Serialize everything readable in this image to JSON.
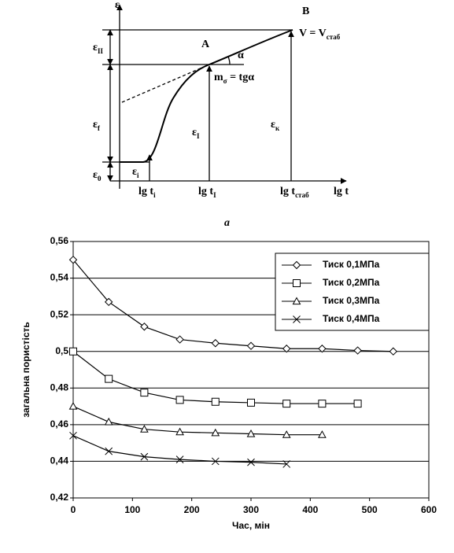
{
  "diagram": {
    "labels": [
      {
        "text": "ε"
      },
      {
        "text": "B"
      },
      {
        "text": "A"
      },
      {
        "text": "V = V",
        "sub": "стаб"
      },
      {
        "text": "α"
      },
      {
        "text": "ε",
        "sub": "II"
      },
      {
        "text": "m",
        "sub": "σ",
        "after": " = tgα"
      },
      {
        "text": "ε",
        "sub": "f"
      },
      {
        "text": "ε",
        "sub": "I"
      },
      {
        "text": "ε",
        "sub": "к"
      },
      {
        "text": "ε",
        "sub": "i"
      },
      {
        "text": "ε",
        "sub": "0"
      },
      {
        "text": "lg t",
        "sub": "i"
      },
      {
        "text": "lg t",
        "sub": "I"
      },
      {
        "text": "lg t",
        "sub": "стаб"
      },
      {
        "text": "lg t"
      }
    ],
    "caption": "a"
  },
  "chart_data": {
    "type": "line",
    "x_label": "Час, мін",
    "y_label": "загальна пористість",
    "xlim": [
      0,
      600
    ],
    "xticks": [
      0,
      100,
      200,
      300,
      400,
      500,
      600
    ],
    "ylim": [
      0.42,
      0.56
    ],
    "yticks": [
      {
        "value": 0.42,
        "label": "0,42"
      },
      {
        "value": 0.44,
        "label": "0,44"
      },
      {
        "value": 0.46,
        "label": "0,46"
      },
      {
        "value": 0.48,
        "label": "0,48"
      },
      {
        "value": 0.5,
        "label": "0,5"
      },
      {
        "value": 0.52,
        "label": "0,52"
      },
      {
        "value": 0.54,
        "label": "0,54"
      },
      {
        "value": 0.56,
        "label": "0,56"
      }
    ],
    "grid": true,
    "legend": "upper right",
    "series": [
      {
        "name": "Тиск 0,1МПа",
        "color": "#000000",
        "marker": "diamond",
        "x": [
          0,
          60,
          120,
          180,
          240,
          300,
          360,
          420,
          480,
          540
        ],
        "values": [
          0.55,
          0.527,
          0.5135,
          0.5065,
          0.5045,
          0.503,
          0.5015,
          0.5015,
          0.5005,
          0.5
        ]
      },
      {
        "name": "Тиск 0,2МПа",
        "color": "#000000",
        "marker": "square",
        "x": [
          0,
          60,
          120,
          180,
          240,
          300,
          360,
          420,
          480
        ],
        "values": [
          0.5,
          0.485,
          0.4775,
          0.4735,
          0.4725,
          0.472,
          0.4715,
          0.4715,
          0.4715
        ]
      },
      {
        "name": "Тиск 0,3МПа",
        "color": "#000000",
        "marker": "triangle",
        "x": [
          0,
          60,
          120,
          180,
          240,
          300,
          360,
          420
        ],
        "values": [
          0.47,
          0.4615,
          0.4575,
          0.456,
          0.4555,
          0.455,
          0.4545,
          0.4545
        ]
      },
      {
        "name": "Тиск 0,4МПа",
        "color": "#000000",
        "marker": "x",
        "x": [
          0,
          60,
          120,
          180,
          240,
          300,
          360
        ],
        "values": [
          0.454,
          0.4455,
          0.4425,
          0.441,
          0.44,
          0.4395,
          0.4385
        ]
      }
    ]
  }
}
